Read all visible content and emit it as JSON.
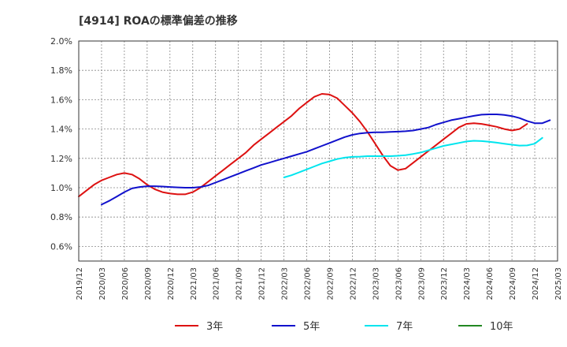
{
  "chart_data": {
    "type": "line",
    "title": "[4914]  ROAの標準偏差の推移",
    "xlabel": "",
    "ylabel": "",
    "ylim": [
      0.5,
      2.0
    ],
    "yticks": [
      "0.6%",
      "0.8%",
      "1.0%",
      "1.2%",
      "1.4%",
      "1.6%",
      "1.8%",
      "2.0%"
    ],
    "ytick_values": [
      0.6,
      0.8,
      1.0,
      1.2,
      1.4,
      1.6,
      1.8,
      2.0
    ],
    "xticks": [
      "2019/12",
      "2020/03",
      "2020/06",
      "2020/09",
      "2020/12",
      "2021/03",
      "2021/06",
      "2021/09",
      "2021/12",
      "2022/03",
      "2022/06",
      "2022/09",
      "2022/12",
      "2023/03",
      "2023/06",
      "2023/09",
      "2023/12",
      "2024/03",
      "2024/06",
      "2024/09",
      "2024/12",
      "2025/03"
    ],
    "grid": true,
    "legend_position": "bottom",
    "series": [
      {
        "name": "3年",
        "color": "#dd1111",
        "start_index": 0,
        "values": [
          0.94,
          0.98,
          1.02,
          1.05,
          1.07,
          1.09,
          1.1,
          1.09,
          1.06,
          1.02,
          0.99,
          0.97,
          0.96,
          0.955,
          0.955,
          0.97,
          1.0,
          1.04,
          1.08,
          1.12,
          1.16,
          1.2,
          1.24,
          1.29,
          1.33,
          1.37,
          1.41,
          1.45,
          1.49,
          1.54,
          1.58,
          1.62,
          1.64,
          1.635,
          1.61,
          1.56,
          1.51,
          1.45,
          1.38,
          1.3,
          1.22,
          1.15,
          1.12,
          1.13,
          1.17,
          1.21,
          1.25,
          1.29,
          1.33,
          1.37,
          1.41,
          1.435,
          1.44,
          1.435,
          1.425,
          1.415,
          1.4,
          1.39,
          1.4,
          1.435
        ]
      },
      {
        "name": "5年",
        "color": "#1111cc",
        "start_index": 3,
        "values": [
          0.885,
          0.91,
          0.94,
          0.97,
          0.995,
          1.005,
          1.01,
          1.01,
          1.008,
          1.005,
          1.002,
          1.0,
          1.0,
          1.005,
          1.015,
          1.035,
          1.055,
          1.075,
          1.095,
          1.115,
          1.135,
          1.155,
          1.17,
          1.185,
          1.2,
          1.215,
          1.23,
          1.245,
          1.265,
          1.285,
          1.305,
          1.325,
          1.345,
          1.36,
          1.37,
          1.375,
          1.378,
          1.378,
          1.38,
          1.382,
          1.385,
          1.39,
          1.4,
          1.41,
          1.43,
          1.445,
          1.46,
          1.47,
          1.48,
          1.49,
          1.498,
          1.5,
          1.5,
          1.496,
          1.488,
          1.475,
          1.455,
          1.44,
          1.44,
          1.46
        ]
      },
      {
        "name": "7年",
        "color": "#00e5ee",
        "start_index": 27,
        "values": [
          1.07,
          1.085,
          1.105,
          1.125,
          1.145,
          1.165,
          1.18,
          1.195,
          1.205,
          1.21,
          1.212,
          1.215,
          1.215,
          1.215,
          1.215,
          1.218,
          1.222,
          1.23,
          1.24,
          1.255,
          1.27,
          1.285,
          1.295,
          1.305,
          1.315,
          1.32,
          1.318,
          1.313,
          1.307,
          1.3,
          1.293,
          1.287,
          1.288,
          1.3,
          1.34
        ]
      },
      {
        "name": "10年",
        "color": "#228822",
        "start_index": 0,
        "values": []
      }
    ]
  }
}
